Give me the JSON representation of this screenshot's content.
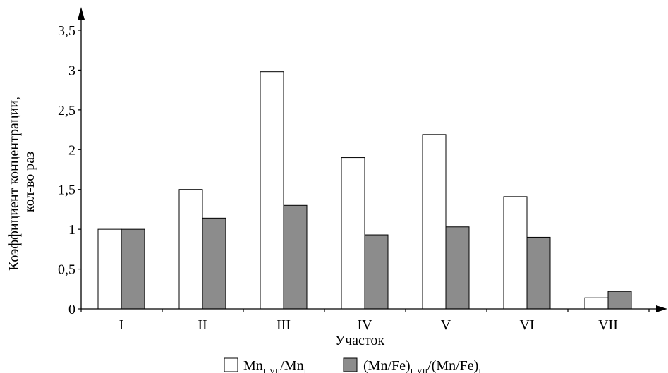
{
  "chart_data": {
    "type": "bar",
    "categories": [
      "I",
      "II",
      "III",
      "IV",
      "V",
      "VI",
      "VII"
    ],
    "series": [
      {
        "name": "Mn_{I–VII}/Mn_{I}",
        "name_parts": {
          "a": "Mn",
          "a_sub": "I–VII",
          "b": "/Mn",
          "b_sub": "I"
        },
        "color": "#ffffff",
        "values": [
          1.0,
          1.5,
          2.98,
          1.9,
          2.19,
          1.41,
          0.14
        ]
      },
      {
        "name": "(Mn/Fe)_{I–VII}/(Mn/Fe)_{I}",
        "name_parts": {
          "a": "(Mn/Fe)",
          "a_sub": "I–VII",
          "b": "/(Mn/Fe)",
          "b_sub": "I"
        },
        "color": "#8c8c8c",
        "values": [
          1.0,
          1.14,
          1.3,
          0.93,
          1.03,
          0.9,
          0.22
        ]
      }
    ],
    "title": "",
    "xlabel": "Участок",
    "ylabel_line1": "Коэффициент концентрации,",
    "ylabel_line2": "кол-во раз",
    "ylim": [
      0,
      3.5
    ],
    "yticks": [
      0,
      0.5,
      1,
      1.5,
      2,
      2.5,
      3,
      3.5
    ],
    "ytick_labels": [
      "0",
      "0,5",
      "1",
      "1,5",
      "2",
      "2,5",
      "3",
      "3,5"
    ],
    "grid": false,
    "legend_position": "bottom"
  }
}
